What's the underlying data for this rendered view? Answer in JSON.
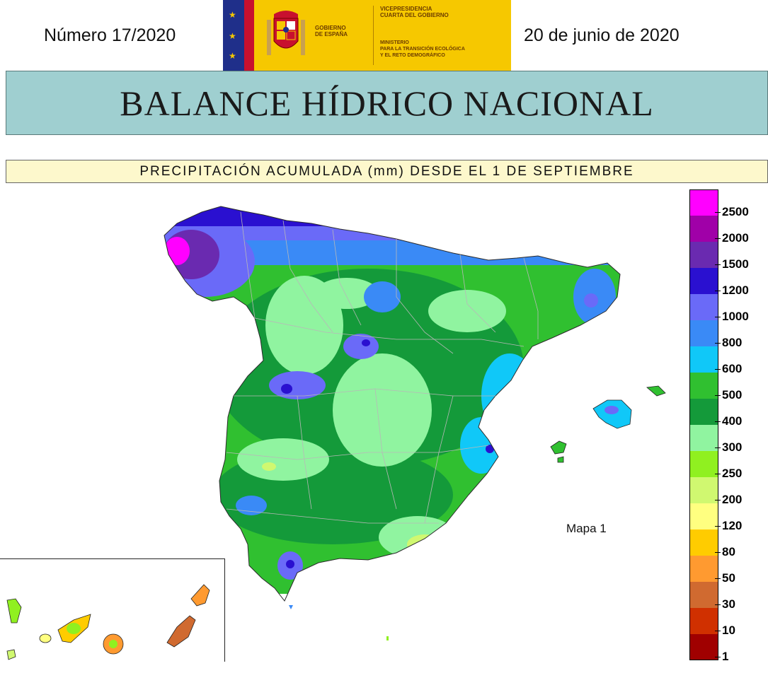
{
  "header": {
    "issue_number": "Número 17/2020",
    "date": "20 de junio de 2020",
    "logo": {
      "gobierno": [
        "GOBIERNO",
        "DE ESPAÑA"
      ],
      "vicepresidencia": [
        "VICEPRESIDENCIA",
        "CUARTA DEL GOBIERNO"
      ],
      "ministerio": [
        "MINISTERIO",
        "PARA LA TRANSICIÓN ECOLÓGICA",
        "Y EL RETO DEMOGRÁFICO"
      ]
    }
  },
  "title": "BALANCE HÍDRICO NACIONAL",
  "subtitle": "PRECIPITACIÓN ACUMULADA (mm) DESDE EL 1 DE SEPTIEMBRE",
  "map_label": "Mapa 1",
  "legend": {
    "items": [
      {
        "label": "2500",
        "color": "#ff00ff"
      },
      {
        "label": "2000",
        "color": "#a000a8"
      },
      {
        "label": "1500",
        "color": "#6a2ab0"
      },
      {
        "label": "1200",
        "color": "#2a10d0"
      },
      {
        "label": "1000",
        "color": "#6a6af8"
      },
      {
        "label": "800",
        "color": "#3a8af6"
      },
      {
        "label": "600",
        "color": "#10c8f8"
      },
      {
        "label": "500",
        "color": "#30c030"
      },
      {
        "label": "400",
        "color": "#149a3a"
      },
      {
        "label": "300",
        "color": "#90f4a0"
      },
      {
        "label": "250",
        "color": "#90f020"
      },
      {
        "label": "200",
        "color": "#d0f870"
      },
      {
        "label": "120",
        "color": "#ffff80"
      },
      {
        "label": "80",
        "color": "#ffcc00"
      },
      {
        "label": "50",
        "color": "#ff9a30"
      },
      {
        "label": "30",
        "color": "#d06a30"
      },
      {
        "label": "10",
        "color": "#d03000"
      },
      {
        "label": "1",
        "color": "#a00000"
      }
    ]
  },
  "colors": {
    "title_band": "#9fcfd0",
    "subtitle_band": "#fdf8cc",
    "logo_yellow": "#f6c800"
  }
}
